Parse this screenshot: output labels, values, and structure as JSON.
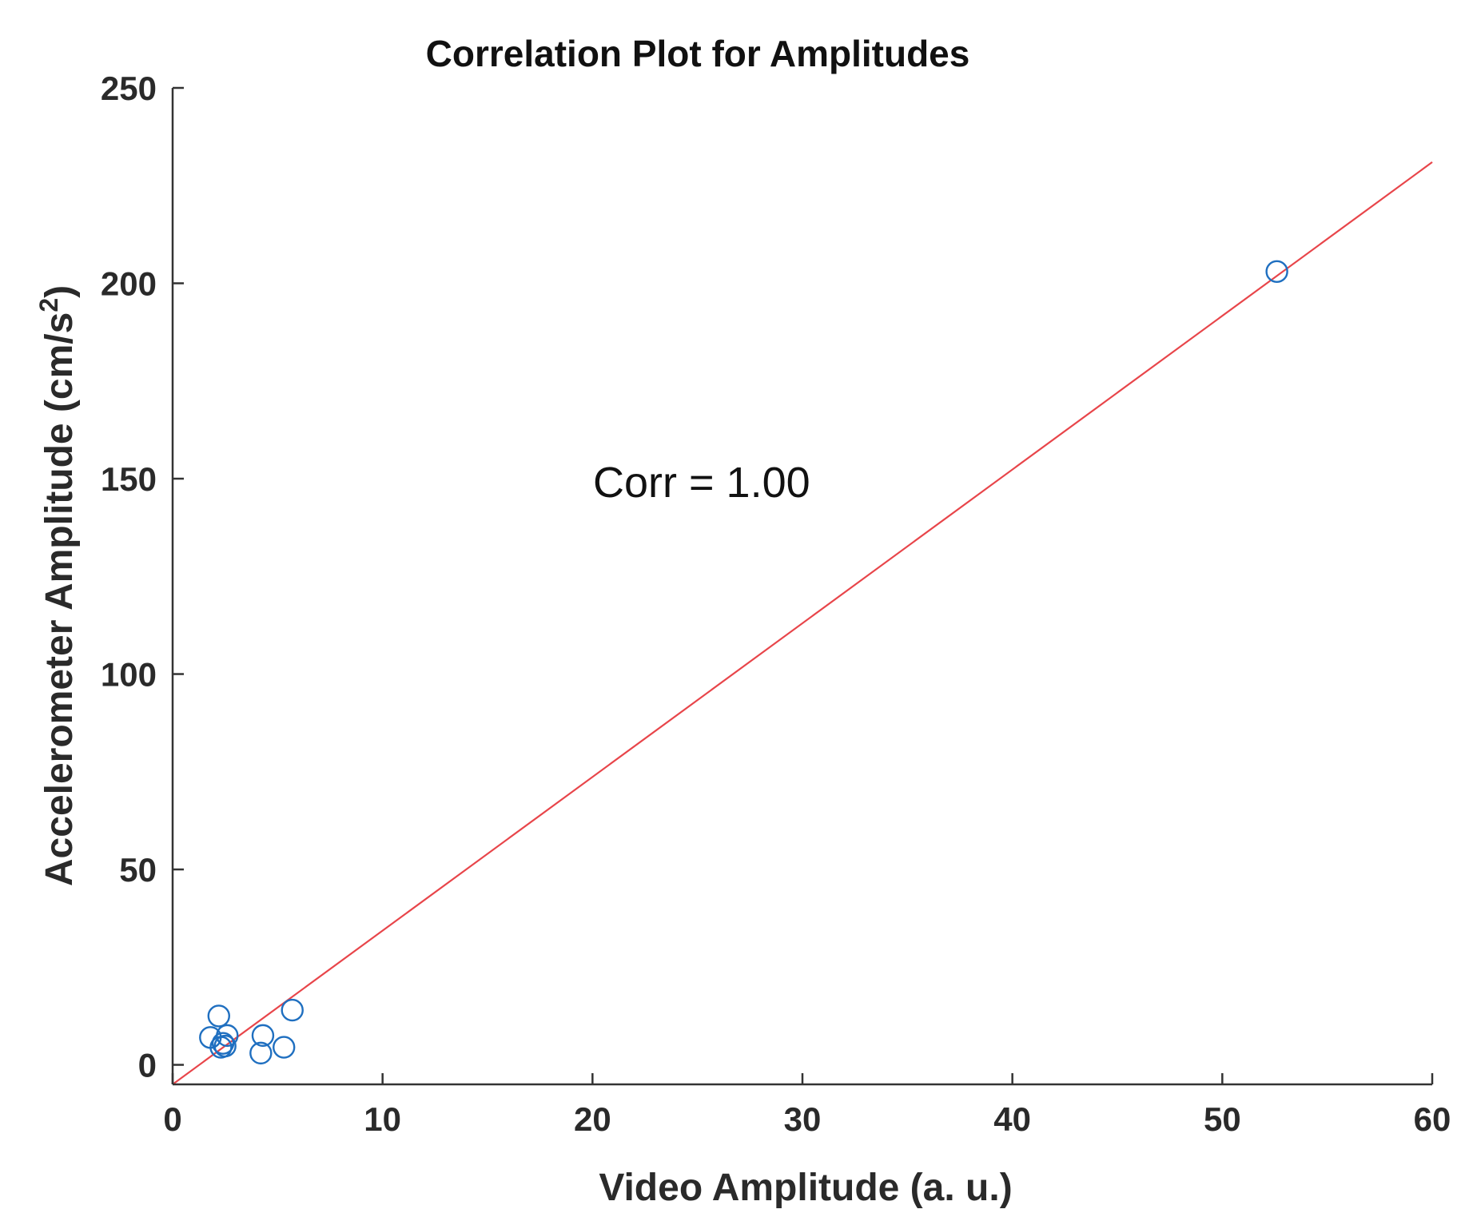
{
  "chart_data": {
    "type": "scatter",
    "title": "Correlation Plot for Amplitudes",
    "xlabel": "Video Amplitude (a. u.)",
    "ylabel": "Accelerometer Amplitude (cm/s",
    "ylabel_superscript": "2",
    "ylabel_suffix": ")",
    "xlim": [
      0,
      60
    ],
    "ylim": [
      -5,
      250
    ],
    "xticks": [
      0,
      10,
      20,
      30,
      40,
      50,
      60
    ],
    "yticks": [
      0,
      50,
      100,
      150,
      200,
      250
    ],
    "grid": false,
    "points": [
      {
        "x": 1.8,
        "y": 7
      },
      {
        "x": 2.2,
        "y": 12.5
      },
      {
        "x": 2.4,
        "y": 5.5
      },
      {
        "x": 2.6,
        "y": 7.5
      },
      {
        "x": 2.3,
        "y": 4.5
      },
      {
        "x": 2.5,
        "y": 4.8
      },
      {
        "x": 4.3,
        "y": 7.5
      },
      {
        "x": 4.2,
        "y": 3
      },
      {
        "x": 5.3,
        "y": 4.5
      },
      {
        "x": 5.7,
        "y": 14
      },
      {
        "x": 52.6,
        "y": 203
      }
    ],
    "fit_line": {
      "x": [
        0,
        60
      ],
      "y": [
        -5,
        231
      ]
    },
    "annotation": "Corr = 1.00",
    "marker_color": "#1f6fc0",
    "line_color": "#e8454a",
    "axis_color": "#333333"
  }
}
